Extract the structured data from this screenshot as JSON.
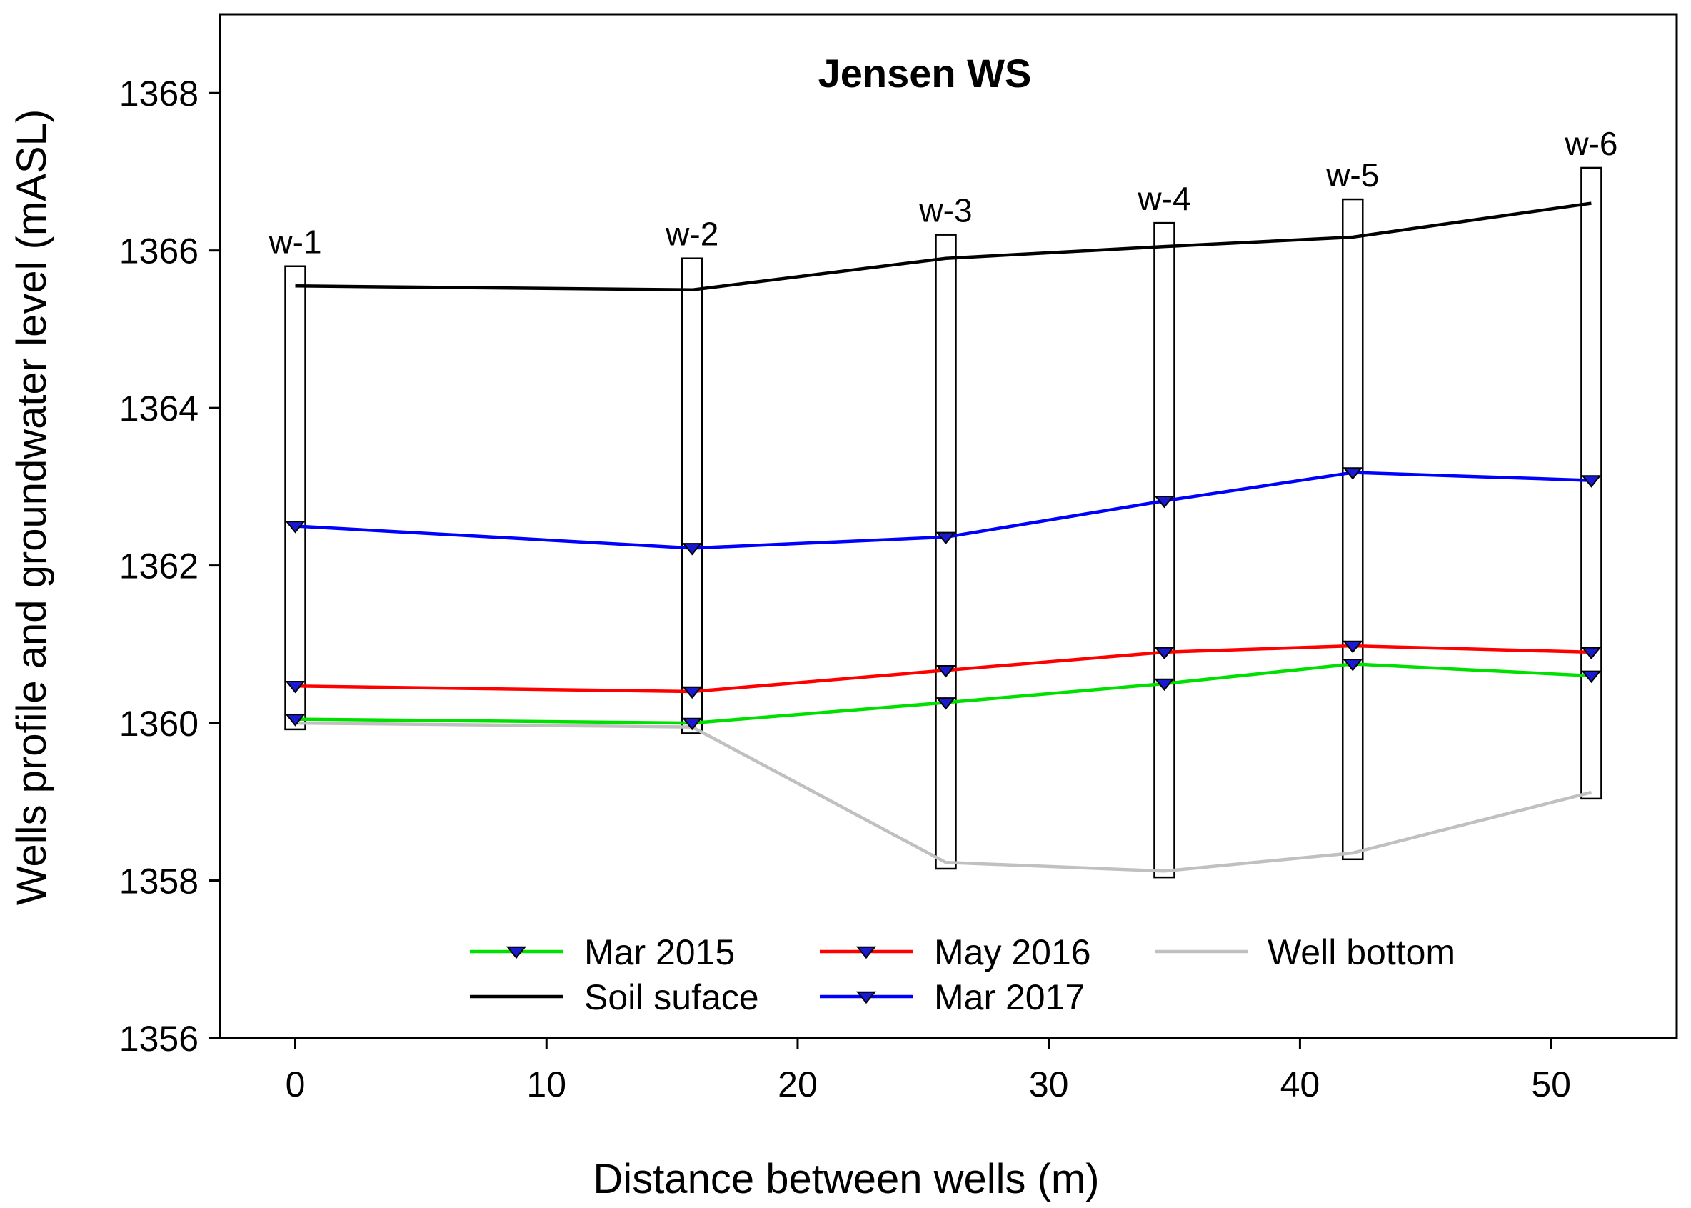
{
  "chart_data": {
    "type": "line",
    "title": "Jensen WS",
    "xlabel": "Distance between wells (m)",
    "ylabel": "Wells profile and groundwater level (mASL)",
    "xlim": [
      -3,
      55
    ],
    "ylim": [
      1356,
      1369
    ],
    "xticks": [
      0,
      10,
      20,
      30,
      40,
      50
    ],
    "yticks": [
      1356,
      1358,
      1360,
      1362,
      1364,
      1366,
      1368
    ],
    "x": [
      0,
      15.8,
      25.9,
      34.6,
      42.1,
      51.6
    ],
    "well_labels": [
      "w-1",
      "w-2",
      "w-3",
      "w-4",
      "w-5",
      "w-6"
    ],
    "well_tops": [
      1365.8,
      1365.9,
      1366.2,
      1366.35,
      1366.65,
      1367.05
    ],
    "series": [
      {
        "name": "Mar 2015",
        "color": "#00e000",
        "marker": "triangle-down",
        "values": [
          1360.05,
          1360.0,
          1360.26,
          1360.5,
          1360.75,
          1360.6
        ]
      },
      {
        "name": "May 2016",
        "color": "#ff0000",
        "marker": "triangle-down",
        "values": [
          1360.47,
          1360.4,
          1360.67,
          1360.9,
          1360.98,
          1360.9
        ]
      },
      {
        "name": "Well bottom",
        "color": "#c0c0c0",
        "marker": "none",
        "values": [
          1360.0,
          1359.95,
          1358.23,
          1358.12,
          1358.35,
          1359.12
        ]
      },
      {
        "name": "Soil suface",
        "color": "#000000",
        "marker": "none",
        "values": [
          1365.55,
          1365.5,
          1365.9,
          1366.05,
          1366.17,
          1366.6
        ]
      },
      {
        "name": "Mar 2017",
        "color": "#0000ff",
        "marker": "triangle-down",
        "values": [
          1362.5,
          1362.22,
          1362.36,
          1362.82,
          1363.18,
          1363.08
        ]
      }
    ],
    "marker_fill": "#1a1ad0",
    "legend": {
      "placement": "bottom-center",
      "columns": 3,
      "order": [
        "Mar 2015",
        "May 2016",
        "Well bottom",
        "Soil suface",
        "Mar 2017"
      ]
    }
  }
}
